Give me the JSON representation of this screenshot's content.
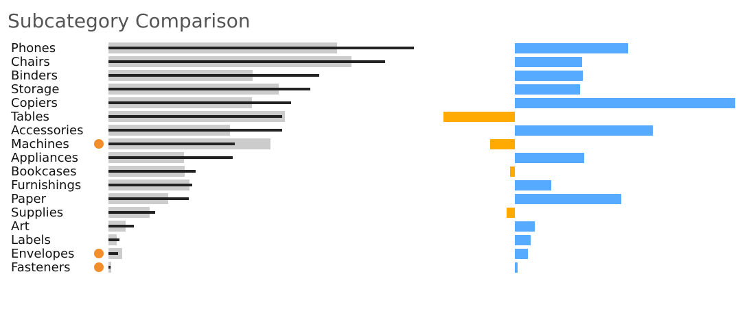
{
  "title": "Subcategory Comparison",
  "chart_data": [
    {
      "type": "bar",
      "title": "",
      "categories": [
        "Phones",
        "Chairs",
        "Binders",
        "Storage",
        "Copiers",
        "Tables",
        "Accessories",
        "Machines",
        "Appliances",
        "Bookcases",
        "Furnishings",
        "Paper",
        "Supplies",
        "Art",
        "Labels",
        "Envelopes",
        "Fasteners"
      ],
      "series": [
        {
          "values": [
            333,
            354,
            210,
            248,
            209,
            257,
            177,
            236,
            110,
            111,
            118,
            87,
            60,
            25,
            12,
            20,
            4
          ]
        },
        {
          "values": [
            445,
            403,
            307,
            294,
            266,
            253,
            253,
            184,
            181,
            127,
            122,
            117,
            68,
            37,
            16,
            14,
            3
          ]
        }
      ],
      "highlight_dots": [
        "Machines",
        "Envelopes",
        "Fasteners"
      ],
      "colors": {
        "bar": "#cccccc",
        "line": "#222222",
        "dot": "#f28e2b"
      }
    },
    {
      "type": "bar",
      "title": "",
      "categories": [
        "Phones",
        "Chairs",
        "Binders",
        "Storage",
        "Copiers",
        "Tables",
        "Accessories",
        "Machines",
        "Appliances",
        "Bookcases",
        "Furnishings",
        "Paper",
        "Supplies",
        "Art",
        "Labels",
        "Envelopes",
        "Fasteners"
      ],
      "values": [
        165,
        98,
        99,
        95,
        321,
        -104,
        201,
        -36,
        101,
        -7,
        53,
        155,
        -12,
        29,
        23,
        19,
        4
      ],
      "colors": {
        "positive": "#56aaff",
        "negative": "#ffaa00"
      }
    }
  ]
}
